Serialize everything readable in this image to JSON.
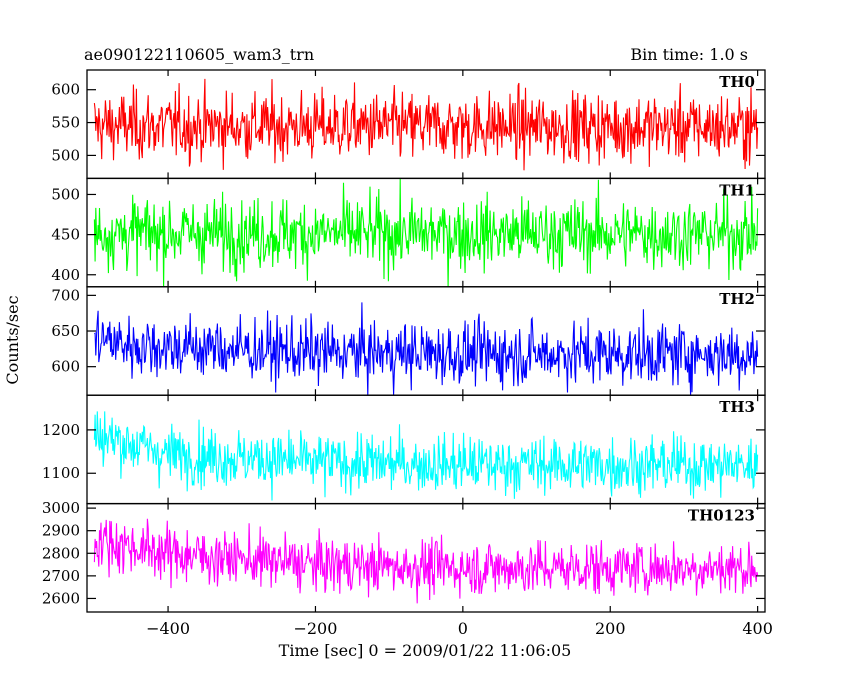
{
  "header": {
    "title": "ae090122110605_wam3_trn",
    "bin_time": "Bin time: 1.0 s"
  },
  "chart_data": {
    "type": "line",
    "xlabel": "Time [sec] 0 = 2009/01/22 11:06:05",
    "ylabel": "Counts/sec",
    "xlim": [
      -510,
      410
    ],
    "x_ticks": [
      -400,
      -200,
      0,
      200,
      400
    ],
    "x_range": [
      -500,
      400
    ],
    "bin_time_s": 1.0,
    "grid": false,
    "panels": [
      {
        "name": "TH0",
        "color": "#ff0000",
        "ylim": [
          465,
          630
        ],
        "yticks": [
          500,
          550,
          600
        ],
        "trend": [
          [
            -500,
            545
          ],
          [
            400,
            543
          ]
        ],
        "noise": 26
      },
      {
        "name": "TH1",
        "color": "#00ff00",
        "ylim": [
          385,
          520
        ],
        "yticks": [
          400,
          450,
          500
        ],
        "trend": [
          [
            -500,
            452
          ],
          [
            400,
            451
          ]
        ],
        "noise": 22
      },
      {
        "name": "TH2",
        "color": "#0000ff",
        "ylim": [
          560,
          712
        ],
        "yticks": [
          600,
          650,
          700
        ],
        "trend": [
          [
            -500,
            640
          ],
          [
            -450,
            630
          ],
          [
            -200,
            620
          ],
          [
            0,
            618
          ],
          [
            400,
            618
          ]
        ],
        "noise": 22
      },
      {
        "name": "TH3",
        "color": "#00ffff",
        "ylim": [
          1030,
          1280
        ],
        "yticks": [
          1100,
          1200
        ],
        "trend": [
          [
            -500,
            1190
          ],
          [
            -400,
            1145
          ],
          [
            -200,
            1125
          ],
          [
            0,
            1120
          ],
          [
            400,
            1118
          ]
        ],
        "noise": 33
      },
      {
        "name": "TH0123",
        "color": "#ff00ff",
        "ylim": [
          2540,
          3020
        ],
        "yticks": [
          2600,
          2700,
          2800,
          2900,
          3000
        ],
        "trend": [
          [
            -500,
            2860
          ],
          [
            -400,
            2800
          ],
          [
            -200,
            2750
          ],
          [
            0,
            2735
          ],
          [
            400,
            2735
          ]
        ],
        "noise": 60
      }
    ]
  }
}
